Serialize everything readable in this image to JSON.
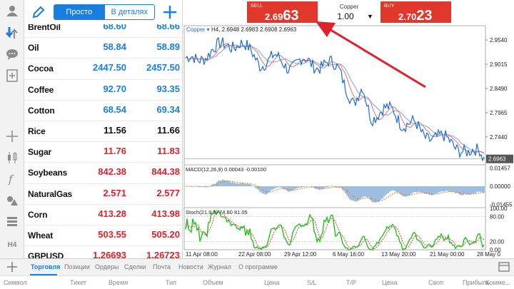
{
  "watchlist": {
    "mode_simple": "Просто",
    "mode_detailed": "В деталях",
    "rows": [
      {
        "symbol": "BrentOil",
        "bid": "68.60",
        "ask": "68.66",
        "color": "blue"
      },
      {
        "symbol": "Oil",
        "bid": "58.84",
        "ask": "58.89",
        "color": "blue"
      },
      {
        "symbol": "Cocoa",
        "bid": "2447.50",
        "ask": "2457.50",
        "color": "blue"
      },
      {
        "symbol": "Coffee",
        "bid": "92.70",
        "ask": "93.35",
        "color": "blue"
      },
      {
        "symbol": "Cotton",
        "bid": "68.54",
        "ask": "69.34",
        "color": "blue"
      },
      {
        "symbol": "Rice",
        "bid": "11.56",
        "ask": "11.66",
        "color": "black"
      },
      {
        "symbol": "Sugar",
        "bid": "11.76",
        "ask": "11.83",
        "color": "red"
      },
      {
        "symbol": "Soybeans",
        "bid": "842.38",
        "ask": "844.38",
        "color": "red"
      },
      {
        "symbol": "NaturalGas",
        "bid": "2.571",
        "ask": "2.577",
        "color": "red"
      },
      {
        "symbol": "Corn",
        "bid": "413.28",
        "ask": "413.98",
        "color": "red"
      },
      {
        "symbol": "Wheat",
        "bid": "503.55",
        "ask": "505.20",
        "color": "red"
      },
      {
        "symbol": "GBPUSD",
        "bid": "1.26693",
        "ask": "1.26723",
        "color": "red"
      }
    ]
  },
  "trade": {
    "sell_label": "SELL",
    "sell_price_small": "2.69",
    "sell_price_big": "63",
    "buy_label": "BUY",
    "buy_price_small": "2.70",
    "buy_price_big": "23",
    "symbol": "Copper",
    "volume": "1.00",
    "dropdown_icon": "▼"
  },
  "chart": {
    "header_symbol": "Copper",
    "header_info": "H4, 2.6948 2.6983 2.6908 2.6963",
    "price_ticks": [
      "2.9540",
      "2.9015",
      "2.8490",
      "2.7965",
      "2.7440"
    ],
    "current_price": "2.6963",
    "macd_label": "MACD(12,26,9) 0.00043 -0.00100",
    "macd_ticks": [
      "0.01457",
      "0.00000",
      "-0.01455"
    ],
    "stoch_label": "Stoch(21,9,3) 74.80 81.05",
    "stoch_ticks": [
      "100.00",
      "80.00",
      "20.00",
      "0.00"
    ],
    "time_labels": [
      "11 Apr 08:00",
      "22 Apr 08:00",
      "29 Apr 12:00",
      "6 May 16:00",
      "13 May 20:00",
      "21 May 00:00",
      "28 May 0"
    ],
    "colors": {
      "price": "#1a6fd8",
      "ma_red": "#e8707a",
      "ma_blue": "#8a9ee8",
      "stoch_main": "#22c122",
      "stoch_signal": "#e53a2a",
      "macd": "#2a6fb8",
      "macd_signal": "#f07a20",
      "arrow": "#e0202a"
    }
  },
  "tabs": {
    "items": [
      "Торговля",
      "Позиции",
      "Ордеры",
      "Сделки",
      "Почта",
      "Новости",
      "Журнал",
      "О программе"
    ],
    "active": "Торговля"
  },
  "columns": [
    "Символ",
    "Тикет",
    "Время",
    "Тип",
    "Объем",
    "Цена",
    "S/L",
    "T/P",
    "Цена",
    "Своп",
    "Прибыль",
    "Комме..."
  ]
}
